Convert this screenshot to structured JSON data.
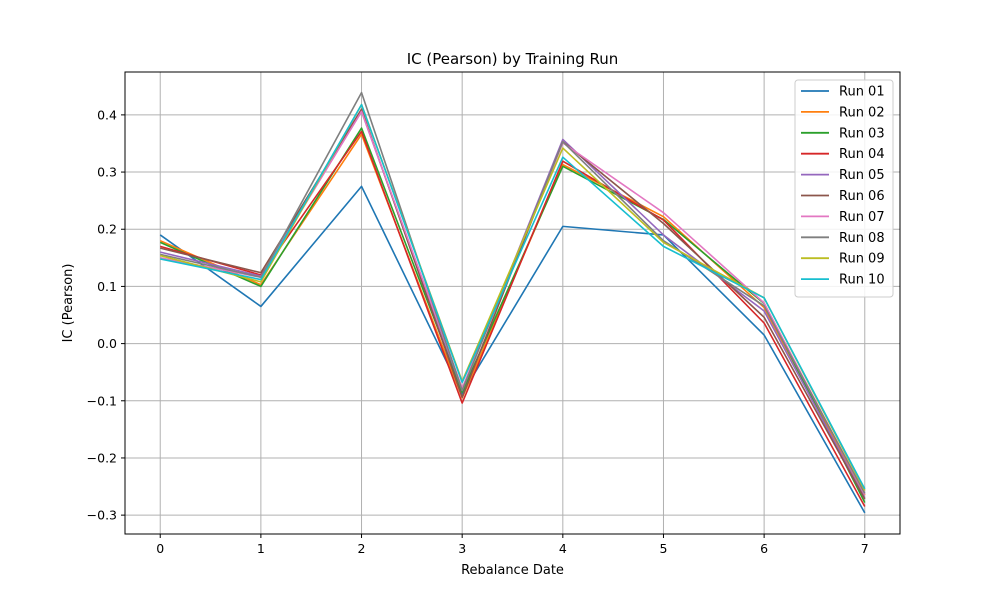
{
  "chart_data": {
    "type": "line",
    "title": "IC (Pearson) by Training Run",
    "xlabel": "Rebalance Date",
    "ylabel": "IC (Pearson)",
    "x": [
      0,
      1,
      2,
      3,
      4,
      5,
      6,
      7
    ],
    "x_ticks": [
      "0",
      "1",
      "2",
      "3",
      "4",
      "5",
      "6",
      "7"
    ],
    "y_ticks": [
      0.4,
      0.3,
      0.2,
      0.1,
      0.0,
      -0.1,
      -0.2,
      -0.3
    ],
    "y_tick_labels": [
      "0.4",
      "0.3",
      "0.2",
      "0.1",
      "0.0",
      "−0.1",
      "−0.2",
      "−0.3"
    ],
    "xlim": [
      -0.35,
      7.35
    ],
    "ylim": [
      -0.333,
      0.475
    ],
    "grid": true,
    "legend_position": "top-right",
    "series": [
      {
        "name": "Run 01",
        "color": "#1f77b4",
        "values": [
          0.19,
          0.065,
          0.275,
          -0.088,
          0.205,
          0.19,
          0.015,
          -0.296
        ]
      },
      {
        "name": "Run 02",
        "color": "#ff7f0e",
        "values": [
          0.18,
          0.103,
          0.366,
          -0.095,
          0.313,
          0.222,
          0.063,
          -0.265
        ]
      },
      {
        "name": "Run 03",
        "color": "#2ca02c",
        "values": [
          0.177,
          0.1,
          0.377,
          -0.085,
          0.31,
          0.217,
          0.07,
          -0.278
        ]
      },
      {
        "name": "Run 04",
        "color": "#d62728",
        "values": [
          0.17,
          0.12,
          0.371,
          -0.104,
          0.319,
          0.216,
          0.036,
          -0.285
        ]
      },
      {
        "name": "Run 05",
        "color": "#9467bd",
        "values": [
          0.16,
          0.118,
          0.406,
          -0.082,
          0.357,
          0.19,
          0.057,
          -0.27
        ]
      },
      {
        "name": "Run 06",
        "color": "#8c564b",
        "values": [
          0.167,
          0.124,
          0.41,
          -0.094,
          0.353,
          0.21,
          0.046,
          -0.272
        ]
      },
      {
        "name": "Run 07",
        "color": "#e377c2",
        "values": [
          0.15,
          0.116,
          0.406,
          -0.078,
          0.351,
          0.229,
          0.071,
          -0.264
        ]
      },
      {
        "name": "Run 08",
        "color": "#7f7f7f",
        "values": [
          0.156,
          0.116,
          0.439,
          -0.082,
          0.353,
          0.18,
          0.066,
          -0.262
        ]
      },
      {
        "name": "Run 09",
        "color": "#bcbd22",
        "values": [
          0.154,
          0.108,
          0.418,
          -0.066,
          0.342,
          0.177,
          0.08,
          -0.257
        ]
      },
      {
        "name": "Run 10",
        "color": "#17becf",
        "values": [
          0.148,
          0.112,
          0.418,
          -0.068,
          0.326,
          0.17,
          0.08,
          -0.254
        ]
      }
    ]
  }
}
